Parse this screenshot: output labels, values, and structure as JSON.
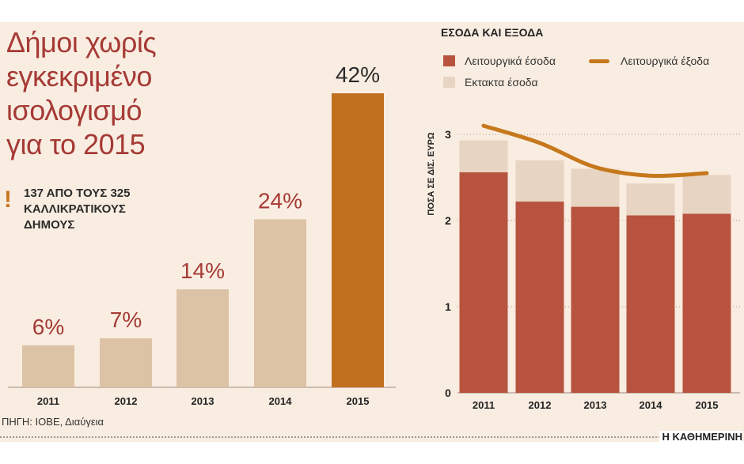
{
  "left_chart": {
    "title_lines": [
      "Δήμοι χωρίς",
      "εγκεκριμένο",
      "ισολογισμό",
      "για το 2015"
    ],
    "note_lines": [
      "137 ΑΠΟ ΤΟΥΣ 325",
      "ΚΑΛΛΙΚΡΑΤΙΚΟΥΣ",
      "ΔΗΜΟΥΣ"
    ],
    "note_icon": "exclamation-icon",
    "value_suffix": "%"
  },
  "right_chart": {
    "title": "ΕΣΟΔΑ ΚΑΙ ΕΞΟΔΑ",
    "legend": {
      "operating_revenue": "Λειτουργικά έσοδα",
      "extraordinary_revenue": "Εκτακτα έσοδα",
      "operating_expenses": "Λειτουργικά έξοδα"
    }
  },
  "source": "ΠΗΓΗ: ΙΟΒΕ, Διαύγεια",
  "brand": "Η ΚΑΘΗΜΕΡΙΝΗ",
  "colors": {
    "background": "#f9ede1",
    "title": "#a63a36",
    "left_bar": "#dcc3a5",
    "left_bar_highlight": "#c0701f",
    "operating_revenue": "#b8533f",
    "extraordinary_revenue": "#e8d4c2",
    "operating_expenses": "#c6781c",
    "value_label": "#a63a36",
    "value_label_highlight": "#2b2b2b"
  },
  "chart_data": [
    {
      "type": "bar",
      "categories": [
        "2011",
        "2012",
        "2013",
        "2014",
        "2015"
      ],
      "values": [
        6,
        7,
        14,
        24,
        42
      ],
      "unit": "%",
      "highlight_index": 4
    },
    {
      "type": "bar",
      "stacked": true,
      "categories": [
        "2011",
        "2012",
        "2013",
        "2014",
        "2015"
      ],
      "series": [
        {
          "name": "Λειτουργικά έσοδα",
          "kind": "bar",
          "values": [
            2.56,
            2.22,
            2.16,
            2.06,
            2.08
          ]
        },
        {
          "name": "Εκτακτα έσοδα",
          "kind": "bar",
          "values": [
            0.37,
            0.48,
            0.44,
            0.37,
            0.45
          ]
        },
        {
          "name": "Λειτουργικά έξοδα",
          "kind": "line",
          "values": [
            3.1,
            2.9,
            2.62,
            2.52,
            2.55
          ]
        }
      ],
      "ylabel": "ΠΟΣΑ ΣΕ ΔΙΣ. ΕΥΡΩ",
      "ylim": [
        0,
        3
      ],
      "yticks": [
        0,
        1,
        2,
        3
      ],
      "grid": "horizontal dotted",
      "legend_position": "top"
    }
  ]
}
